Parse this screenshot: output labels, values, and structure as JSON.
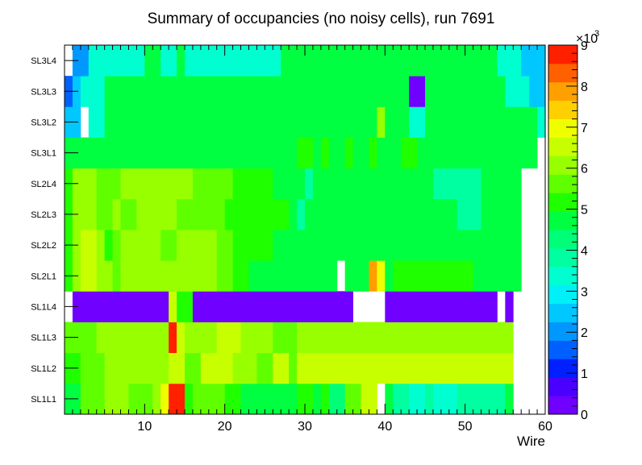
{
  "chart_data": {
    "type": "heatmap",
    "title": "Summary of occupancies (no noisy cells), run 7691",
    "xlabel": "Wire",
    "ylabel": "",
    "xlim": [
      0,
      60
    ],
    "x_ticks": [
      "10",
      "20",
      "30",
      "40",
      "50",
      "60"
    ],
    "y_categories": [
      "SL1L1",
      "SL1L2",
      "SL1L3",
      "SL1L4",
      "SL2L1",
      "SL2L2",
      "SL2L3",
      "SL2L4",
      "SL3L1",
      "SL3L2",
      "SL3L3",
      "SL3L4"
    ],
    "colorbar": {
      "min": 0,
      "max": 9000,
      "ticks": [
        "0",
        "1",
        "2",
        "3",
        "4",
        "5",
        "6",
        "7",
        "8",
        "9"
      ],
      "multiplier": "×10",
      "multiplier_exp": "3"
    },
    "palette": [
      "#7000ff",
      "#4a00ff",
      "#0020ff",
      "#0060ff",
      "#0098ff",
      "#00c8ff",
      "#00f0f8",
      "#00ffd0",
      "#00ffa0",
      "#00ff78",
      "#00ff40",
      "#20ff00",
      "#60ff00",
      "#98ff00",
      "#c8ff00",
      "#f0ff00",
      "#ffd000",
      "#ffa000",
      "#ff6000",
      "#ff2000"
    ],
    "values": [
      [
        4700,
        4700,
        5600,
        5600,
        5600,
        5900,
        5900,
        5900,
        5600,
        5600,
        5600,
        5900,
        7000,
        8900,
        8900,
        5300,
        5600,
        5600,
        5600,
        5600,
        5300,
        5300,
        4500,
        4500,
        4500,
        4500,
        4500,
        4500,
        4500,
        5200,
        5200,
        4500,
        5300,
        4200,
        4200,
        5800,
        5800,
        6500,
        6500,
        null,
        4500,
        3800,
        3800,
        3300,
        3300,
        3800,
        3300,
        3300,
        3300,
        3800,
        3800,
        3800,
        3800,
        3800,
        3800,
        4700,
        null,
        null,
        null,
        null
      ],
      [
        5300,
        5300,
        5600,
        5600,
        5600,
        6000,
        6000,
        6000,
        6000,
        6000,
        6000,
        6000,
        6000,
        6700,
        6700,
        5600,
        5600,
        6300,
        6300,
        6300,
        6300,
        5900,
        5900,
        5900,
        5600,
        5600,
        6300,
        6300,
        5600,
        6300,
        6300,
        6300,
        6300,
        6300,
        6300,
        6300,
        6300,
        6300,
        6300,
        6300,
        6300,
        6300,
        6300,
        6300,
        6300,
        6300,
        6300,
        6300,
        6300,
        6300,
        6300,
        6300,
        6300,
        6300,
        6300,
        6300,
        null,
        null,
        null,
        null
      ],
      [
        5600,
        5600,
        5600,
        5600,
        6000,
        6000,
        6000,
        6000,
        6000,
        6000,
        6000,
        6000,
        6000,
        8900,
        6300,
        6000,
        6000,
        6000,
        6000,
        6300,
        6300,
        6300,
        6000,
        6000,
        6000,
        6000,
        5600,
        5600,
        5600,
        6000,
        6000,
        6000,
        6000,
        6000,
        6000,
        6000,
        6000,
        6000,
        6000,
        6000,
        6000,
        6000,
        6000,
        6000,
        6000,
        6000,
        6000,
        6000,
        6000,
        6000,
        6000,
        6000,
        6000,
        6000,
        6000,
        6000,
        null,
        null,
        null,
        null
      ],
      [
        null,
        350,
        350,
        350,
        350,
        350,
        350,
        350,
        350,
        350,
        350,
        350,
        350,
        6700,
        5300,
        5300,
        350,
        350,
        350,
        350,
        350,
        350,
        350,
        350,
        350,
        350,
        350,
        350,
        350,
        350,
        350,
        350,
        350,
        350,
        350,
        350,
        null,
        null,
        null,
        null,
        350,
        350,
        350,
        350,
        350,
        350,
        350,
        350,
        350,
        350,
        350,
        350,
        350,
        350,
        null,
        350,
        null,
        null,
        null,
        null
      ],
      [
        5300,
        6000,
        6700,
        6700,
        6000,
        6000,
        5600,
        6000,
        6000,
        6000,
        6000,
        6000,
        6000,
        6000,
        6000,
        6000,
        6000,
        6000,
        6000,
        5600,
        5600,
        5300,
        5300,
        4500,
        4500,
        4500,
        4500,
        4500,
        4500,
        4500,
        4500,
        4500,
        4500,
        4500,
        null,
        4500,
        4500,
        4500,
        7800,
        7000,
        4500,
        5300,
        5300,
        5300,
        5300,
        5300,
        5300,
        5300,
        5300,
        5300,
        5300,
        4500,
        4500,
        4500,
        4500,
        4500,
        4500,
        null,
        null,
        null
      ],
      [
        5300,
        6000,
        6700,
        6700,
        6000,
        5300,
        5600,
        6000,
        6000,
        6000,
        6000,
        6000,
        5600,
        5600,
        6000,
        6000,
        6000,
        6000,
        6000,
        5600,
        5600,
        5300,
        5300,
        5300,
        5300,
        5300,
        4500,
        4500,
        4500,
        4500,
        4500,
        4500,
        4500,
        4500,
        4500,
        4500,
        4500,
        4500,
        4500,
        4500,
        4500,
        4500,
        4500,
        4500,
        4500,
        4500,
        4500,
        4500,
        4500,
        4500,
        4500,
        4500,
        4500,
        4500,
        4500,
        4500,
        4500,
        null,
        null,
        null
      ],
      [
        5300,
        6000,
        6000,
        6000,
        5600,
        5600,
        6000,
        5600,
        5600,
        6000,
        6000,
        6000,
        6000,
        6000,
        5600,
        5600,
        5600,
        5600,
        5600,
        5600,
        5300,
        5300,
        5300,
        5300,
        5300,
        5300,
        5300,
        5300,
        4500,
        3800,
        4500,
        4500,
        4500,
        4500,
        4500,
        4500,
        4500,
        4500,
        4500,
        4500,
        4500,
        4500,
        4500,
        4500,
        4500,
        4500,
        4500,
        4500,
        4500,
        3800,
        3800,
        3800,
        4500,
        4500,
        4500,
        4500,
        4500,
        null,
        null,
        null
      ],
      [
        5300,
        6000,
        6000,
        6000,
        5600,
        5600,
        5600,
        6000,
        6000,
        6000,
        6000,
        6000,
        6000,
        6000,
        6000,
        6000,
        5600,
        5600,
        5600,
        5600,
        5600,
        5300,
        5300,
        5300,
        5300,
        5300,
        4500,
        4500,
        4500,
        4500,
        3800,
        4500,
        4500,
        4500,
        4500,
        4500,
        4500,
        4500,
        4500,
        4500,
        4500,
        4500,
        4500,
        4500,
        4500,
        4500,
        3800,
        3800,
        3800,
        3800,
        3800,
        3800,
        4500,
        4500,
        4500,
        4500,
        4500,
        null,
        null,
        null
      ],
      [
        4700,
        4700,
        4700,
        4700,
        4500,
        4500,
        4500,
        4500,
        4500,
        4500,
        4500,
        4500,
        4500,
        4500,
        4500,
        4500,
        4500,
        4500,
        4500,
        4500,
        4500,
        4500,
        4500,
        4500,
        4500,
        4500,
        4500,
        4500,
        4500,
        5300,
        5300,
        4500,
        5300,
        4500,
        4500,
        5300,
        4500,
        4500,
        5300,
        4500,
        4500,
        4500,
        5300,
        5300,
        4500,
        4500,
        4500,
        4500,
        4500,
        4500,
        4500,
        4500,
        4500,
        4500,
        4500,
        4500,
        4500,
        4500,
        4500,
        null
      ],
      [
        2500,
        2500,
        null,
        3300,
        3300,
        4500,
        4500,
        4500,
        4500,
        4500,
        4500,
        4500,
        4500,
        4500,
        4500,
        4500,
        4500,
        4500,
        4500,
        4500,
        4500,
        4500,
        4500,
        4500,
        4500,
        4500,
        4500,
        4500,
        4500,
        4500,
        4500,
        4500,
        4500,
        4500,
        4500,
        4500,
        4500,
        4500,
        4500,
        6000,
        4500,
        4500,
        4500,
        3300,
        3300,
        4500,
        4500,
        4500,
        4500,
        4500,
        4500,
        4500,
        4500,
        4500,
        4500,
        4500,
        4500,
        4500,
        4500,
        3300
      ],
      [
        1500,
        2500,
        3300,
        3300,
        3300,
        4500,
        4500,
        4500,
        4500,
        4500,
        4500,
        4500,
        4500,
        4500,
        4500,
        4500,
        4500,
        4500,
        4500,
        4500,
        4500,
        4500,
        4500,
        4500,
        4500,
        4500,
        4500,
        4500,
        4500,
        4500,
        4500,
        4500,
        4500,
        4500,
        4500,
        4500,
        4500,
        4500,
        4500,
        4500,
        4500,
        4500,
        4500,
        350,
        350,
        4500,
        4500,
        4500,
        4500,
        4500,
        4500,
        4500,
        4500,
        4500,
        4500,
        3300,
        3300,
        3300,
        2500,
        2500
      ],
      [
        null,
        2000,
        2000,
        3300,
        3300,
        3300,
        3300,
        3300,
        3300,
        3300,
        4500,
        4500,
        3300,
        3300,
        4500,
        3300,
        3300,
        3300,
        3300,
        3300,
        3300,
        3300,
        3300,
        3300,
        3300,
        3300,
        3300,
        4500,
        4500,
        4500,
        4500,
        4500,
        4500,
        4500,
        4500,
        4500,
        4500,
        4500,
        4500,
        4500,
        4500,
        4500,
        4500,
        4500,
        4500,
        4500,
        4500,
        4500,
        4500,
        4500,
        4500,
        4500,
        4500,
        4500,
        3300,
        3300,
        3300,
        2500,
        2500,
        2500
      ]
    ]
  }
}
